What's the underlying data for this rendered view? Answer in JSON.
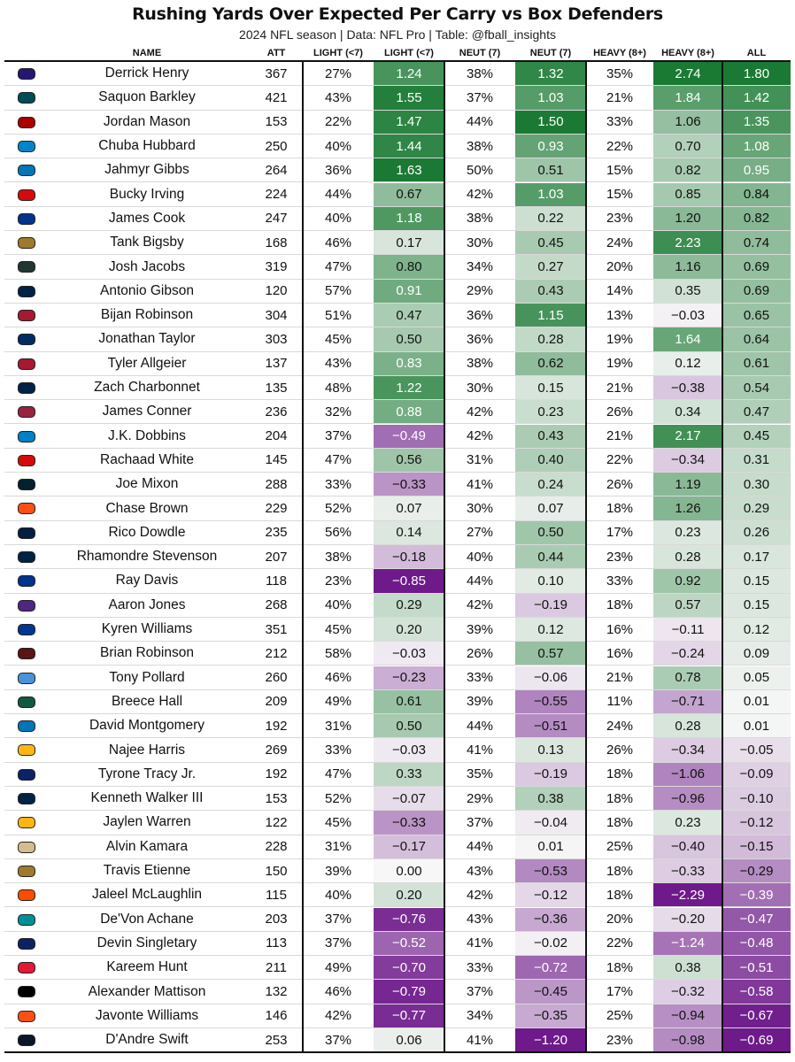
{
  "chart_data": {
    "type": "table",
    "title": "Rushing Yards Over Expected Per Carry vs Box Defenders",
    "subtitle": "2024 NFL season | Data: NFL Pro | Table: @fball_insights",
    "columns": [
      "NAME",
      "ATT",
      "LIGHT (<7)",
      "LIGHT (<7)",
      "NEUT (7)",
      "NEUT (7)",
      "HEAVY (8+)",
      "HEAVY (8+)",
      "ALL"
    ],
    "colors": {
      "strong_positive": "#1a7a33",
      "neutral": "#f7f7f7",
      "strong_negative": "#6e1a8a",
      "border": "#111111"
    },
    "rows": [
      {
        "team_color": "#241773",
        "name": "Derrick Henry",
        "att": "367",
        "light_pct": "27%",
        "light_val": "1.24",
        "neut_pct": "38%",
        "neut_val": "1.32",
        "heavy_pct": "35%",
        "heavy_val": "2.74",
        "all": "1.80"
      },
      {
        "team_color": "#004C54",
        "name": "Saquon Barkley",
        "att": "421",
        "light_pct": "43%",
        "light_val": "1.55",
        "neut_pct": "37%",
        "neut_val": "1.03",
        "heavy_pct": "21%",
        "heavy_val": "1.84",
        "all": "1.42"
      },
      {
        "team_color": "#AA0000",
        "name": "Jordan Mason",
        "att": "153",
        "light_pct": "22%",
        "light_val": "1.47",
        "neut_pct": "44%",
        "neut_val": "1.50",
        "heavy_pct": "33%",
        "heavy_val": "1.06",
        "all": "1.35"
      },
      {
        "team_color": "#0085CA",
        "name": "Chuba Hubbard",
        "att": "250",
        "light_pct": "40%",
        "light_val": "1.44",
        "neut_pct": "38%",
        "neut_val": "0.93",
        "heavy_pct": "22%",
        "heavy_val": "0.70",
        "all": "1.08"
      },
      {
        "team_color": "#0076B6",
        "name": "Jahmyr Gibbs",
        "att": "264",
        "light_pct": "36%",
        "light_val": "1.63",
        "neut_pct": "50%",
        "neut_val": "0.51",
        "heavy_pct": "15%",
        "heavy_val": "0.82",
        "all": "0.95"
      },
      {
        "team_color": "#D50A0A",
        "name": "Bucky Irving",
        "att": "224",
        "light_pct": "44%",
        "light_val": "0.67",
        "neut_pct": "42%",
        "neut_val": "1.03",
        "heavy_pct": "15%",
        "heavy_val": "0.85",
        "all": "0.84"
      },
      {
        "team_color": "#00338D",
        "name": "James Cook",
        "att": "247",
        "light_pct": "40%",
        "light_val": "1.18",
        "neut_pct": "38%",
        "neut_val": "0.22",
        "heavy_pct": "23%",
        "heavy_val": "1.20",
        "all": "0.82"
      },
      {
        "team_color": "#9F792C",
        "name": "Tank Bigsby",
        "att": "168",
        "light_pct": "46%",
        "light_val": "0.17",
        "neut_pct": "30%",
        "neut_val": "0.45",
        "heavy_pct": "24%",
        "heavy_val": "2.23",
        "all": "0.74"
      },
      {
        "team_color": "#203731",
        "name": "Josh Jacobs",
        "att": "319",
        "light_pct": "47%",
        "light_val": "0.80",
        "neut_pct": "34%",
        "neut_val": "0.27",
        "heavy_pct": "20%",
        "heavy_val": "1.16",
        "all": "0.69"
      },
      {
        "team_color": "#002244",
        "name": "Antonio Gibson",
        "att": "120",
        "light_pct": "57%",
        "light_val": "0.91",
        "neut_pct": "29%",
        "neut_val": "0.43",
        "heavy_pct": "14%",
        "heavy_val": "0.35",
        "all": "0.69"
      },
      {
        "team_color": "#A71930",
        "name": "Bijan Robinson",
        "att": "304",
        "light_pct": "51%",
        "light_val": "0.47",
        "neut_pct": "36%",
        "neut_val": "1.15",
        "heavy_pct": "13%",
        "heavy_val": "−0.03",
        "all": "0.65"
      },
      {
        "team_color": "#002C5F",
        "name": "Jonathan Taylor",
        "att": "303",
        "light_pct": "45%",
        "light_val": "0.50",
        "neut_pct": "36%",
        "neut_val": "0.28",
        "heavy_pct": "19%",
        "heavy_val": "1.64",
        "all": "0.64"
      },
      {
        "team_color": "#A71930",
        "name": "Tyler Allgeier",
        "att": "137",
        "light_pct": "43%",
        "light_val": "0.83",
        "neut_pct": "38%",
        "neut_val": "0.62",
        "heavy_pct": "19%",
        "heavy_val": "0.12",
        "all": "0.61"
      },
      {
        "team_color": "#002244",
        "name": "Zach Charbonnet",
        "att": "135",
        "light_pct": "48%",
        "light_val": "1.22",
        "neut_pct": "30%",
        "neut_val": "0.15",
        "heavy_pct": "21%",
        "heavy_val": "−0.38",
        "all": "0.54"
      },
      {
        "team_color": "#97233F",
        "name": "James Conner",
        "att": "236",
        "light_pct": "32%",
        "light_val": "0.88",
        "neut_pct": "42%",
        "neut_val": "0.23",
        "heavy_pct": "26%",
        "heavy_val": "0.34",
        "all": "0.47"
      },
      {
        "team_color": "#0080C6",
        "name": "J.K. Dobbins",
        "att": "204",
        "light_pct": "37%",
        "light_val": "−0.49",
        "neut_pct": "42%",
        "neut_val": "0.43",
        "heavy_pct": "21%",
        "heavy_val": "2.17",
        "all": "0.45"
      },
      {
        "team_color": "#D50A0A",
        "name": "Rachaad White",
        "att": "145",
        "light_pct": "47%",
        "light_val": "0.56",
        "neut_pct": "31%",
        "neut_val": "0.40",
        "heavy_pct": "22%",
        "heavy_val": "−0.34",
        "all": "0.31"
      },
      {
        "team_color": "#03202F",
        "name": "Joe Mixon",
        "att": "288",
        "light_pct": "33%",
        "light_val": "−0.33",
        "neut_pct": "41%",
        "neut_val": "0.24",
        "heavy_pct": "26%",
        "heavy_val": "1.19",
        "all": "0.30"
      },
      {
        "team_color": "#FB4F14",
        "name": "Chase Brown",
        "att": "229",
        "light_pct": "52%",
        "light_val": "0.07",
        "neut_pct": "30%",
        "neut_val": "0.07",
        "heavy_pct": "18%",
        "heavy_val": "1.26",
        "all": "0.29"
      },
      {
        "team_color": "#041E42",
        "name": "Rico Dowdle",
        "att": "235",
        "light_pct": "56%",
        "light_val": "0.14",
        "neut_pct": "27%",
        "neut_val": "0.50",
        "heavy_pct": "17%",
        "heavy_val": "0.23",
        "all": "0.26"
      },
      {
        "team_color": "#002244",
        "name": "Rhamondre Stevenson",
        "att": "207",
        "light_pct": "38%",
        "light_val": "−0.18",
        "neut_pct": "40%",
        "neut_val": "0.44",
        "heavy_pct": "23%",
        "heavy_val": "0.28",
        "all": "0.17"
      },
      {
        "team_color": "#00338D",
        "name": "Ray Davis",
        "att": "118",
        "light_pct": "23%",
        "light_val": "−0.85",
        "neut_pct": "44%",
        "neut_val": "0.10",
        "heavy_pct": "33%",
        "heavy_val": "0.92",
        "all": "0.15"
      },
      {
        "team_color": "#4F2683",
        "name": "Aaron Jones",
        "att": "268",
        "light_pct": "40%",
        "light_val": "0.29",
        "neut_pct": "42%",
        "neut_val": "−0.19",
        "heavy_pct": "18%",
        "heavy_val": "0.57",
        "all": "0.15"
      },
      {
        "team_color": "#003594",
        "name": "Kyren Williams",
        "att": "351",
        "light_pct": "45%",
        "light_val": "0.20",
        "neut_pct": "39%",
        "neut_val": "0.12",
        "heavy_pct": "16%",
        "heavy_val": "−0.11",
        "all": "0.12"
      },
      {
        "team_color": "#5A1414",
        "name": "Brian Robinson",
        "att": "212",
        "light_pct": "58%",
        "light_val": "−0.03",
        "neut_pct": "26%",
        "neut_val": "0.57",
        "heavy_pct": "16%",
        "heavy_val": "−0.24",
        "all": "0.09"
      },
      {
        "team_color": "#4B92DB",
        "name": "Tony Pollard",
        "att": "260",
        "light_pct": "46%",
        "light_val": "−0.23",
        "neut_pct": "33%",
        "neut_val": "−0.06",
        "heavy_pct": "21%",
        "heavy_val": "0.78",
        "all": "0.05"
      },
      {
        "team_color": "#125740",
        "name": "Breece Hall",
        "att": "209",
        "light_pct": "49%",
        "light_val": "0.61",
        "neut_pct": "39%",
        "neut_val": "−0.55",
        "heavy_pct": "11%",
        "heavy_val": "−0.71",
        "all": "0.01"
      },
      {
        "team_color": "#0076B6",
        "name": "David Montgomery",
        "att": "192",
        "light_pct": "31%",
        "light_val": "0.50",
        "neut_pct": "44%",
        "neut_val": "−0.51",
        "heavy_pct": "24%",
        "heavy_val": "0.28",
        "all": "0.01"
      },
      {
        "team_color": "#FFB612",
        "name": "Najee Harris",
        "att": "269",
        "light_pct": "33%",
        "light_val": "−0.03",
        "neut_pct": "41%",
        "neut_val": "0.13",
        "heavy_pct": "26%",
        "heavy_val": "−0.34",
        "all": "−0.05"
      },
      {
        "team_color": "#0B2265",
        "name": "Tyrone Tracy Jr.",
        "att": "192",
        "light_pct": "47%",
        "light_val": "0.33",
        "neut_pct": "35%",
        "neut_val": "−0.19",
        "heavy_pct": "18%",
        "heavy_val": "−1.06",
        "all": "−0.09"
      },
      {
        "team_color": "#002244",
        "name": "Kenneth Walker III",
        "att": "153",
        "light_pct": "52%",
        "light_val": "−0.07",
        "neut_pct": "29%",
        "neut_val": "0.38",
        "heavy_pct": "18%",
        "heavy_val": "−0.96",
        "all": "−0.10"
      },
      {
        "team_color": "#FFB612",
        "name": "Jaylen Warren",
        "att": "122",
        "light_pct": "45%",
        "light_val": "−0.33",
        "neut_pct": "37%",
        "neut_val": "−0.04",
        "heavy_pct": "18%",
        "heavy_val": "0.23",
        "all": "−0.12"
      },
      {
        "team_color": "#D3BC8D",
        "name": "Alvin Kamara",
        "att": "228",
        "light_pct": "31%",
        "light_val": "−0.17",
        "neut_pct": "44%",
        "neut_val": "0.01",
        "heavy_pct": "25%",
        "heavy_val": "−0.40",
        "all": "−0.15"
      },
      {
        "team_color": "#9F792C",
        "name": "Travis Etienne",
        "att": "150",
        "light_pct": "39%",
        "light_val": "0.00",
        "neut_pct": "43%",
        "neut_val": "−0.53",
        "heavy_pct": "18%",
        "heavy_val": "−0.33",
        "all": "−0.29"
      },
      {
        "team_color": "#FC4C02",
        "name": "Jaleel McLaughlin",
        "att": "115",
        "light_pct": "40%",
        "light_val": "0.20",
        "neut_pct": "42%",
        "neut_val": "−0.12",
        "heavy_pct": "18%",
        "heavy_val": "−2.29",
        "all": "−0.39"
      },
      {
        "team_color": "#008E97",
        "name": "De'Von Achane",
        "att": "203",
        "light_pct": "37%",
        "light_val": "−0.76",
        "neut_pct": "43%",
        "neut_val": "−0.36",
        "heavy_pct": "20%",
        "heavy_val": "−0.20",
        "all": "−0.47"
      },
      {
        "team_color": "#0B2265",
        "name": "Devin Singletary",
        "att": "113",
        "light_pct": "37%",
        "light_val": "−0.52",
        "neut_pct": "41%",
        "neut_val": "−0.02",
        "heavy_pct": "22%",
        "heavy_val": "−1.24",
        "all": "−0.48"
      },
      {
        "team_color": "#E31837",
        "name": "Kareem Hunt",
        "att": "211",
        "light_pct": "49%",
        "light_val": "−0.70",
        "neut_pct": "33%",
        "neut_val": "−0.72",
        "heavy_pct": "18%",
        "heavy_val": "0.38",
        "all": "−0.51"
      },
      {
        "team_color": "#000000",
        "name": "Alexander Mattison",
        "att": "132",
        "light_pct": "46%",
        "light_val": "−0.79",
        "neut_pct": "37%",
        "neut_val": "−0.45",
        "heavy_pct": "17%",
        "heavy_val": "−0.32",
        "all": "−0.58"
      },
      {
        "team_color": "#FB4F14",
        "name": "Javonte Williams",
        "att": "146",
        "light_pct": "42%",
        "light_val": "−0.77",
        "neut_pct": "34%",
        "neut_val": "−0.35",
        "heavy_pct": "25%",
        "heavy_val": "−0.94",
        "all": "−0.67"
      },
      {
        "team_color": "#0B162A",
        "name": "D'Andre Swift",
        "att": "253",
        "light_pct": "37%",
        "light_val": "0.06",
        "neut_pct": "41%",
        "neut_val": "−1.20",
        "heavy_pct": "23%",
        "heavy_val": "−0.98",
        "all": "−0.69"
      }
    ]
  }
}
